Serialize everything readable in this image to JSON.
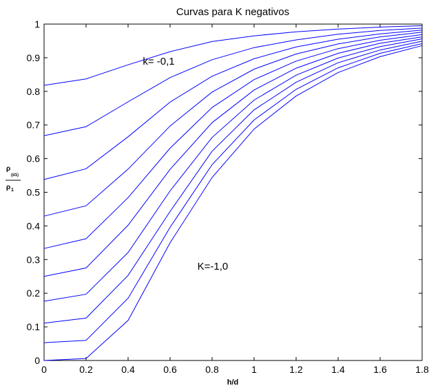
{
  "chart_data": {
    "type": "line",
    "title": "Curvas para K negativos",
    "xlabel": "h/d",
    "ylabel": {
      "numerator": "ρ",
      "numerator_sub": "(d1)",
      "denominator": "ρ",
      "denominator_sub": "1"
    },
    "xlim": [
      0,
      1.8
    ],
    "ylim": [
      0,
      1
    ],
    "xticks": [
      "0",
      "0.2",
      "0.4",
      "0.6",
      "0.8",
      "1",
      "1.2",
      "1.4",
      "1.6",
      "1.8"
    ],
    "yticks": [
      "0",
      "0.1",
      "0.2",
      "0.3",
      "0.4",
      "0.5",
      "0.6",
      "0.7",
      "0.8",
      "0.9",
      "1"
    ],
    "grid": false,
    "line_color": "#0000ff",
    "annotations": [
      {
        "text": "k= -0,1",
        "x": 0.47,
        "y": 0.89
      },
      {
        "text": "K=-1,0",
        "x": 0.73,
        "y": 0.28
      }
    ],
    "x": [
      0,
      0.2,
      0.4,
      0.6,
      0.8,
      1.0,
      1.2,
      1.4,
      1.6,
      1.8
    ],
    "series": [
      {
        "k": -0.1,
        "values": [
          0.818,
          0.837,
          0.879,
          0.918,
          0.948,
          0.965,
          0.977,
          0.985,
          0.991,
          0.995
        ]
      },
      {
        "k": -0.2,
        "values": [
          0.668,
          0.695,
          0.769,
          0.841,
          0.894,
          0.93,
          0.953,
          0.97,
          0.981,
          0.988
        ]
      },
      {
        "k": -0.3,
        "values": [
          0.538,
          0.57,
          0.665,
          0.768,
          0.845,
          0.897,
          0.932,
          0.955,
          0.971,
          0.982
        ]
      },
      {
        "k": -0.4,
        "values": [
          0.429,
          0.46,
          0.569,
          0.697,
          0.798,
          0.866,
          0.911,
          0.941,
          0.962,
          0.976
        ]
      },
      {
        "k": -0.5,
        "values": [
          0.333,
          0.362,
          0.484,
          0.631,
          0.752,
          0.835,
          0.89,
          0.927,
          0.952,
          0.969
        ]
      },
      {
        "k": -0.6,
        "values": [
          0.25,
          0.275,
          0.402,
          0.568,
          0.707,
          0.804,
          0.869,
          0.913,
          0.943,
          0.962
        ]
      },
      {
        "k": -0.7,
        "values": [
          0.176,
          0.197,
          0.321,
          0.504,
          0.663,
          0.774,
          0.848,
          0.899,
          0.933,
          0.956
        ]
      },
      {
        "k": -0.8,
        "values": [
          0.111,
          0.126,
          0.253,
          0.443,
          0.622,
          0.745,
          0.827,
          0.885,
          0.923,
          0.949
        ]
      },
      {
        "k": -0.9,
        "values": [
          0.053,
          0.06,
          0.185,
          0.396,
          0.582,
          0.715,
          0.806,
          0.87,
          0.913,
          0.942
        ]
      },
      {
        "k": -1.0,
        "values": [
          0.0,
          0.006,
          0.119,
          0.35,
          0.544,
          0.688,
          0.786,
          0.856,
          0.903,
          0.936
        ]
      }
    ]
  }
}
